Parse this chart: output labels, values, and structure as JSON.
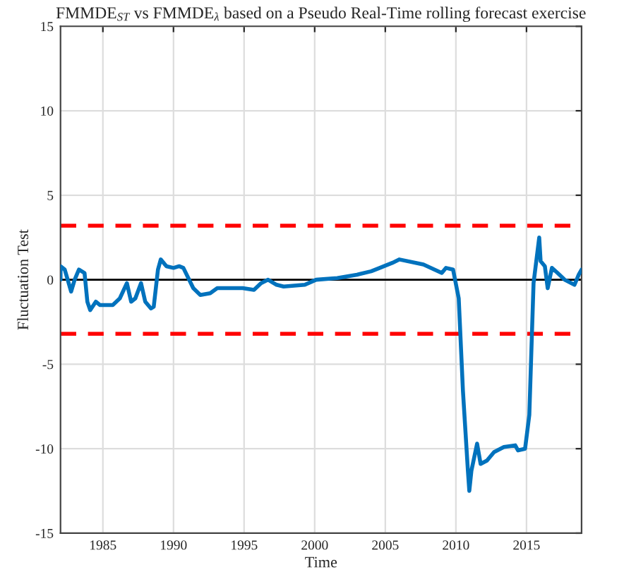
{
  "chart_data": {
    "type": "line",
    "title": "FMMDE$_{ST}$ vs FMMDE$_{λ}$ based on a Pseudo Real-Time rolling forecast exercise",
    "xlabel": "Time",
    "ylabel": "Fluctuation Test",
    "x": [
      1982.0,
      1982.0,
      1982.3,
      1982.75,
      1983.0,
      1983.3,
      1983.7,
      1983.9,
      1984.1,
      1984.5,
      1984.8,
      1985.7,
      1986.2,
      1986.7,
      1987.0,
      1987.3,
      1987.7,
      1988.0,
      1988.4,
      1988.6,
      1988.9,
      1989.1,
      1989.5,
      1990.0,
      1990.4,
      1990.7,
      1991.4,
      1991.9,
      1992.6,
      1993.1,
      1994.9,
      1995.7,
      1996.2,
      1996.7,
      1997.3,
      1997.8,
      1999.3,
      2000.1,
      2001.6,
      2003.0,
      2004.0,
      2004.6,
      2005.5,
      2006.0,
      2007.7,
      2009.0,
      2009.3,
      2009.8,
      2010.2,
      2010.5,
      2010.85,
      2010.95,
      2011.1,
      2011.5,
      2011.75,
      2012.2,
      2012.7,
      2013.4,
      2014.2,
      2014.4,
      2014.9,
      2015.2,
      2015.5,
      2015.9,
      2016.0,
      2016.3,
      2016.5,
      2016.8,
      2017.2,
      2017.7,
      2018.4,
      2018.7,
      2018.9
    ],
    "series": [
      {
        "color": "#0072bd",
        "values": [
          0.0,
          0.8,
          0.6,
          -0.7,
          0.0,
          0.6,
          0.4,
          -1.3,
          -1.8,
          -1.3,
          -1.5,
          -1.5,
          -1.1,
          -0.2,
          -1.3,
          -1.1,
          -0.2,
          -1.3,
          -1.7,
          -1.6,
          0.6,
          1.2,
          0.8,
          0.7,
          0.8,
          0.7,
          -0.5,
          -0.9,
          -0.8,
          -0.5,
          -0.5,
          -0.6,
          -0.2,
          0.0,
          -0.3,
          -0.4,
          -0.3,
          0.0,
          0.1,
          0.3,
          0.5,
          0.7,
          1.0,
          1.2,
          0.9,
          0.4,
          0.7,
          0.6,
          -1.1,
          -6.6,
          -11.3,
          -12.5,
          -11.3,
          -9.7,
          -10.9,
          -10.7,
          -10.2,
          -9.9,
          -9.8,
          -10.1,
          -10.0,
          -8.0,
          -0.2,
          2.5,
          1.1,
          0.8,
          -0.5,
          0.7,
          0.4,
          0.0,
          -0.3,
          0.3,
          0.6
        ]
      }
    ],
    "xlim": [
      1982.0,
      2018.9
    ],
    "ylim": [
      -15,
      15
    ],
    "xticks": [
      1985,
      1990,
      1995,
      2000,
      2005,
      2010,
      2015
    ],
    "yticks": [
      -15,
      -10,
      -5,
      0,
      5,
      10,
      15
    ],
    "ref_lines": [
      {
        "axis": "y",
        "value": 0,
        "color": "#000000",
        "line_style": "solid"
      },
      {
        "axis": "y",
        "value": 3.2,
        "color": "#ff0000",
        "line_style": "dashed"
      },
      {
        "axis": "y",
        "value": -3.2,
        "color": "#ff0000",
        "line_style": "dashed"
      }
    ],
    "grid": true,
    "legend": false,
    "marker": "none",
    "line_style": "solid"
  }
}
